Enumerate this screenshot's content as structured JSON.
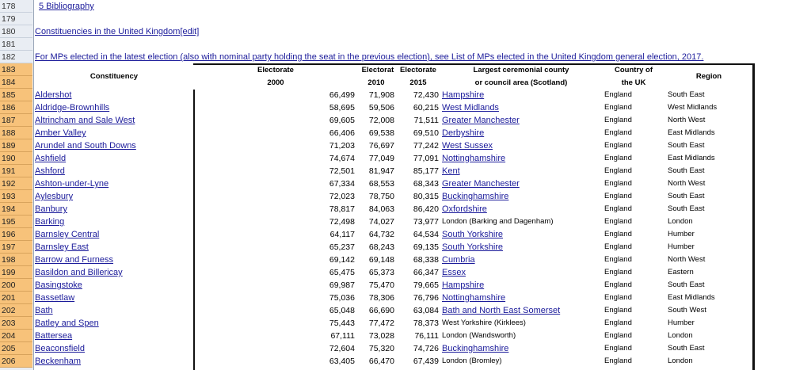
{
  "first_row": 178,
  "pre_lines": [
    {
      "row": 178,
      "text": "5 Bibliography",
      "link": true,
      "indent": 5
    },
    {
      "row": 179,
      "text": "",
      "link": false
    },
    {
      "row": 180,
      "text": "Constituencies in the United Kingdom[edit]",
      "link": true
    },
    {
      "row": 181,
      "text": "",
      "link": false
    },
    {
      "row": 182,
      "text": "For MPs elected in the latest election (also with nominal party holding the seat in the previous election), see List of MPs elected in the United Kingdom general election, 2017.",
      "link": true
    }
  ],
  "headers": {
    "constituency": "Constituency",
    "e2000_a": "Electorate",
    "e2000_b": "2000",
    "e2010_a": "Electorat",
    "e2010_b": "2010",
    "e2015_a": "Electorate",
    "e2015_b": "2015",
    "county_a": "Largest ceremonial county",
    "county_b": "or council area (Scotland)",
    "country_a": "Country of",
    "country_b": "the UK",
    "region": "Region"
  },
  "rows": [
    {
      "name": "Aldershot",
      "e2000": "66,499",
      "e2010": "71,908",
      "e2015": "72,430",
      "county": "Hampshire",
      "county_link": true,
      "country": "England",
      "region": "South East"
    },
    {
      "name": "Aldridge-Brownhills",
      "e2000": "58,695",
      "e2010": "59,506",
      "e2015": "60,215",
      "county": "West Midlands",
      "county_link": true,
      "country": "England",
      "region": "West Midlands"
    },
    {
      "name": "Altrincham and Sale West",
      "e2000": "69,605",
      "e2010": "72,008",
      "e2015": "71,511",
      "county": "Greater Manchester",
      "county_link": true,
      "country": "England",
      "region": "North West"
    },
    {
      "name": "Amber Valley",
      "e2000": "66,406",
      "e2010": "69,538",
      "e2015": "69,510",
      "county": "Derbyshire",
      "county_link": true,
      "country": "England",
      "region": "East Midlands"
    },
    {
      "name": "Arundel and South Downs",
      "e2000": "71,203",
      "e2010": "76,697",
      "e2015": "77,242",
      "county": "West Sussex",
      "county_link": true,
      "country": "England",
      "region": "South East"
    },
    {
      "name": "Ashfield",
      "e2000": "74,674",
      "e2010": "77,049",
      "e2015": "77,091",
      "county": "Nottinghamshire",
      "county_link": true,
      "country": "England",
      "region": "East Midlands"
    },
    {
      "name": "Ashford",
      "e2000": "72,501",
      "e2010": "81,947",
      "e2015": "85,177",
      "county": "Kent",
      "county_link": true,
      "country": "England",
      "region": "South East"
    },
    {
      "name": "Ashton-under-Lyne",
      "e2000": "67,334",
      "e2010": "68,553",
      "e2015": "68,343",
      "county": "Greater Manchester",
      "county_link": true,
      "country": "England",
      "region": "North West"
    },
    {
      "name": "Aylesbury",
      "e2000": "72,023",
      "e2010": "78,750",
      "e2015": "80,315",
      "county": "Buckinghamshire",
      "county_link": true,
      "country": "England",
      "region": "South East"
    },
    {
      "name": "Banbury",
      "e2000": "78,817",
      "e2010": "84,063",
      "e2015": "86,420",
      "county": "Oxfordshire",
      "county_link": true,
      "country": "England",
      "region": "South East"
    },
    {
      "name": "Barking",
      "e2000": "72,498",
      "e2010": "74,027",
      "e2015": "73,977",
      "county": "London (Barking and Dagenham)",
      "county_link": false,
      "country": "England",
      "region": "London"
    },
    {
      "name": "Barnsley Central",
      "e2000": "64,117",
      "e2010": "64,732",
      "e2015": "64,534",
      "county": "South Yorkshire",
      "county_link": true,
      "country": "England",
      "region": "Humber"
    },
    {
      "name": "Barnsley East",
      "e2000": "65,237",
      "e2010": "68,243",
      "e2015": "69,135",
      "county": "South Yorkshire",
      "county_link": true,
      "country": "England",
      "region": "Humber"
    },
    {
      "name": "Barrow and Furness",
      "e2000": "69,142",
      "e2010": "69,148",
      "e2015": "68,338",
      "county": "Cumbria",
      "county_link": true,
      "country": "England",
      "region": "North West"
    },
    {
      "name": "Basildon and Billericay",
      "e2000": "65,475",
      "e2010": "65,373",
      "e2015": "66,347",
      "county": "Essex",
      "county_link": true,
      "country": "England",
      "region": "Eastern"
    },
    {
      "name": "Basingstoke",
      "e2000": "69,987",
      "e2010": "75,470",
      "e2015": "79,665",
      "county": "Hampshire",
      "county_link": true,
      "country": "England",
      "region": "South East"
    },
    {
      "name": "Bassetlaw",
      "e2000": "75,036",
      "e2010": "78,306",
      "e2015": "76,796",
      "county": "Nottinghamshire",
      "county_link": true,
      "country": "England",
      "region": "East Midlands"
    },
    {
      "name": "Bath",
      "e2000": "65,048",
      "e2010": "66,690",
      "e2015": "63,084",
      "county": "Bath and North East Somerset",
      "county_link": true,
      "country": "England",
      "region": "South West"
    },
    {
      "name": "Batley and Spen",
      "e2000": "75,443",
      "e2010": "77,472",
      "e2015": "78,373",
      "county": "West Yorkshire (Kirklees)",
      "county_link": false,
      "country": "England",
      "region": "Humber"
    },
    {
      "name": "Battersea",
      "e2000": "67,111",
      "e2010": "73,028",
      "e2015": "76,111",
      "county": "London (Wandsworth)",
      "county_link": false,
      "country": "England",
      "region": "London"
    },
    {
      "name": "Beaconsfield",
      "e2000": "72,604",
      "e2010": "75,320",
      "e2015": "74,726",
      "county": "Buckinghamshire",
      "county_link": true,
      "country": "England",
      "region": "South East"
    },
    {
      "name": "Beckenham",
      "e2000": "63,405",
      "e2010": "66,470",
      "e2015": "67,439",
      "county": "London (Bromley)",
      "county_link": false,
      "country": "England",
      "region": "London"
    }
  ]
}
